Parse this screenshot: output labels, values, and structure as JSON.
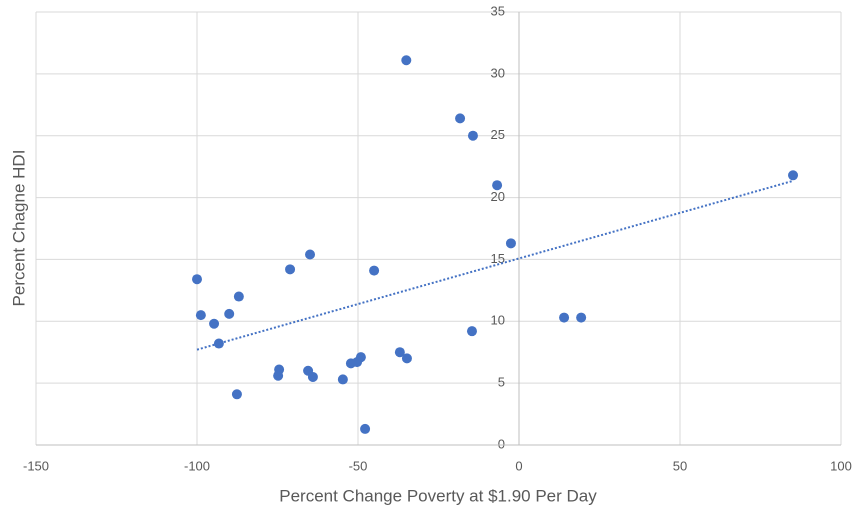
{
  "chart_data": {
    "type": "scatter",
    "x_label": "Percent Change Poverty at $1.90 Per Day",
    "y_label": "Percent Chagne HDI",
    "x": [
      -35,
      -18.3,
      -14.3,
      -6.8,
      -2.5,
      85.1,
      14,
      19.3,
      -14.6,
      -100,
      -98.8,
      -94.7,
      -93.2,
      -90,
      -87,
      -87.6,
      -71.1,
      -64.9,
      -45,
      -74.5,
      -74.8,
      -65.5,
      -64,
      -54.7,
      -52.2,
      -50.3,
      -49.1,
      -37,
      -34.8,
      -47.8
    ],
    "values": [
      31.1,
      26.4,
      25.0,
      21.0,
      16.3,
      21.8,
      10.3,
      10.3,
      9.2,
      13.4,
      10.5,
      9.8,
      8.2,
      10.6,
      12.0,
      4.1,
      14.2,
      15.4,
      14.1,
      6.1,
      5.6,
      6.0,
      5.5,
      5.3,
      6.6,
      6.7,
      7.1,
      7.5,
      7.0,
      1.3
    ],
    "color": "#4472c4",
    "trendline": "linear",
    "xlim": [
      -150,
      100
    ],
    "xticks": [
      -150,
      -100,
      -50,
      0,
      50,
      100
    ],
    "ylim": [
      0,
      35
    ],
    "yticks": [
      0,
      5,
      10,
      15,
      20,
      25,
      30,
      35
    ],
    "grid": true
  }
}
